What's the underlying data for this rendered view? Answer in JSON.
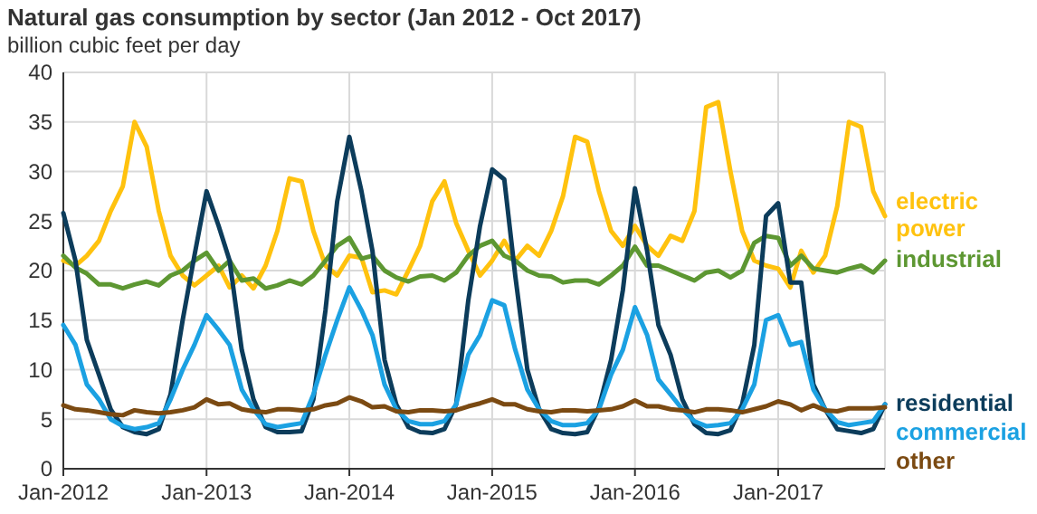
{
  "chart_data": {
    "type": "line",
    "title": "Natural gas consumption by sector (Jan 2012 - Oct 2017)",
    "subtitle": "billion cubic feet per day",
    "x": [
      "2012-01",
      "2012-02",
      "2012-03",
      "2012-04",
      "2012-05",
      "2012-06",
      "2012-07",
      "2012-08",
      "2012-09",
      "2012-10",
      "2012-11",
      "2012-12",
      "2013-01",
      "2013-02",
      "2013-03",
      "2013-04",
      "2013-05",
      "2013-06",
      "2013-07",
      "2013-08",
      "2013-09",
      "2013-10",
      "2013-11",
      "2013-12",
      "2014-01",
      "2014-02",
      "2014-03",
      "2014-04",
      "2014-05",
      "2014-06",
      "2014-07",
      "2014-08",
      "2014-09",
      "2014-10",
      "2014-11",
      "2014-12",
      "2015-01",
      "2015-02",
      "2015-03",
      "2015-04",
      "2015-05",
      "2015-06",
      "2015-07",
      "2015-08",
      "2015-09",
      "2015-10",
      "2015-11",
      "2015-12",
      "2016-01",
      "2016-02",
      "2016-03",
      "2016-04",
      "2016-05",
      "2016-06",
      "2016-07",
      "2016-08",
      "2016-09",
      "2016-10",
      "2016-11",
      "2016-12",
      "2017-01",
      "2017-02",
      "2017-03",
      "2017-04",
      "2017-05",
      "2017-06",
      "2017-07",
      "2017-08",
      "2017-09",
      "2017-10"
    ],
    "series": [
      {
        "name": "electric power",
        "color": "#ffc20e",
        "values": [
          21,
          20.5,
          21.5,
          23,
          26,
          28.5,
          35,
          32.5,
          26,
          21.5,
          19.5,
          18.5,
          19.5,
          20.5,
          18.3,
          19.5,
          18.2,
          20.5,
          24,
          29.3,
          29,
          24,
          20.5,
          19.5,
          21.5,
          21.3,
          17.8,
          18,
          17.6,
          20,
          22.5,
          27,
          29,
          24.8,
          22,
          19.5,
          21,
          23,
          21,
          22.5,
          21.5,
          24,
          27.5,
          33.5,
          33,
          28,
          24,
          22.5,
          24.5,
          22.5,
          21.5,
          23.5,
          23,
          26,
          36.5,
          37,
          30,
          24,
          21,
          20.5,
          20.2,
          18.3,
          22,
          19.8,
          21.5,
          26.5,
          35,
          34.5,
          28,
          25.5
        ]
      },
      {
        "name": "industrial",
        "color": "#5d9732",
        "values": [
          21.5,
          20.3,
          19.7,
          18.6,
          18.6,
          18.2,
          18.6,
          18.9,
          18.5,
          19.5,
          20,
          21,
          21.8,
          20,
          21,
          19,
          19.2,
          18.2,
          18.5,
          19,
          18.6,
          19.5,
          21,
          22.5,
          23.3,
          21.2,
          21.5,
          20,
          19.3,
          18.9,
          19.4,
          19.5,
          19,
          19.8,
          21.5,
          22.5,
          23,
          21.5,
          21,
          20,
          19.5,
          19.4,
          18.8,
          19,
          19,
          18.6,
          19.5,
          20.5,
          22.4,
          20.5,
          20.5,
          20,
          19.5,
          19,
          19.8,
          20,
          19.3,
          20,
          22.8,
          23.5,
          23.3,
          20.5,
          21.5,
          20.2,
          20,
          19.8,
          20.2,
          20.5,
          19.8,
          21
        ]
      },
      {
        "name": "residential",
        "color": "#0c3c5b",
        "values": [
          25.8,
          21,
          13,
          9.5,
          6,
          4.2,
          3.7,
          3.5,
          4,
          7.5,
          15,
          21.5,
          28,
          24.5,
          21,
          12,
          7,
          4.2,
          3.7,
          3.7,
          3.8,
          7,
          16,
          27,
          33.5,
          28,
          22,
          11,
          6.5,
          4.2,
          3.7,
          3.6,
          4,
          6.5,
          17,
          24.5,
          30.2,
          29.2,
          19.5,
          10,
          6,
          4,
          3.6,
          3.5,
          3.7,
          6.2,
          11,
          18,
          28.3,
          22,
          14.5,
          11.5,
          7,
          4.5,
          3.6,
          3.5,
          3.9,
          6.5,
          12.5,
          25.5,
          26.8,
          18.8,
          18.8,
          8.5,
          6,
          4,
          3.8,
          3.6,
          4,
          6.5
        ]
      },
      {
        "name": "commercial",
        "color": "#1ba1e2",
        "values": [
          14.5,
          12.5,
          8.5,
          7,
          5,
          4.3,
          4,
          4.2,
          4.6,
          7,
          10,
          12.5,
          15.5,
          14,
          12.5,
          8,
          6,
          4.5,
          4.2,
          4.4,
          4.6,
          7.5,
          11.5,
          15,
          18.3,
          16,
          13.5,
          8.5,
          6,
          4.8,
          4.5,
          4.5,
          4.8,
          6.5,
          11.5,
          13.5,
          17,
          16.5,
          12,
          8,
          6,
          4.8,
          4.4,
          4.4,
          4.6,
          6,
          9.5,
          12,
          16.3,
          13.5,
          9,
          7.5,
          6,
          4.8,
          4.3,
          4.4,
          4.6,
          6,
          8.5,
          15,
          15.5,
          12.5,
          12.8,
          8,
          6,
          4.7,
          4.4,
          4.6,
          4.8,
          6.5
        ]
      },
      {
        "name": "other",
        "color": "#7b4a12",
        "values": [
          6.4,
          6,
          5.9,
          5.7,
          5.5,
          5.4,
          5.9,
          5.7,
          5.6,
          5.7,
          5.9,
          6.2,
          7,
          6.5,
          6.6,
          6,
          5.8,
          5.7,
          6,
          6,
          5.9,
          6,
          6.4,
          6.6,
          7.2,
          6.8,
          6.2,
          6.3,
          5.8,
          5.7,
          5.9,
          5.9,
          5.8,
          5.9,
          6.3,
          6.6,
          7,
          6.5,
          6.5,
          6,
          5.8,
          5.7,
          5.9,
          5.9,
          5.8,
          5.9,
          6,
          6.3,
          6.9,
          6.3,
          6.3,
          6,
          5.9,
          5.7,
          6,
          6,
          5.9,
          5.7,
          6,
          6.3,
          6.8,
          6.5,
          5.9,
          6.4,
          5.9,
          5.8,
          6.1,
          6.1,
          6.1,
          6.2
        ]
      }
    ],
    "xlim": [
      "2012-01",
      "2017-10"
    ],
    "xticks": [
      {
        "value": "2012-01",
        "label": "Jan-2012"
      },
      {
        "value": "2013-01",
        "label": "Jan-2013"
      },
      {
        "value": "2014-01",
        "label": "Jan-2014"
      },
      {
        "value": "2015-01",
        "label": "Jan-2015"
      },
      {
        "value": "2016-01",
        "label": "Jan-2016"
      },
      {
        "value": "2017-01",
        "label": "Jan-2017"
      }
    ],
    "ylim": [
      0,
      40
    ],
    "yticks": [
      0,
      5,
      10,
      15,
      20,
      25,
      30,
      35,
      40
    ],
    "grid": true,
    "legend": "right",
    "marker": "none",
    "line_style": "solid"
  }
}
